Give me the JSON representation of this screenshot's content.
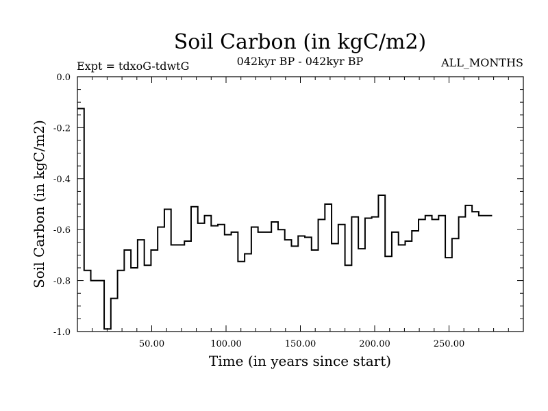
{
  "chart_data": {
    "type": "line",
    "step": true,
    "title": "Soil Carbon (in kgC/m2)",
    "subtitle_left": "Expt = tdxoG-tdwtG",
    "subtitle_center": "042kyr BP - 042kyr BP",
    "subtitle_right": "ALL_MONTHS",
    "xlabel": "Time (in years since start)",
    "ylabel": "Soil Carbon (in kgC/m2)",
    "xlim": [
      0,
      300
    ],
    "ylim": [
      -1.0,
      0.0
    ],
    "xticks": [
      50,
      100,
      150,
      200,
      250
    ],
    "xtick_labels": [
      "50.00",
      "100.00",
      "150.00",
      "200.00",
      "250.00"
    ],
    "yticks": [
      0.0,
      -0.2,
      -0.4,
      -0.6,
      -0.8,
      -1.0
    ],
    "ytick_labels": [
      "0.0",
      "-0.2",
      "-0.4",
      "-0.6",
      "-0.8",
      "-1.0"
    ],
    "grid": false,
    "series": [
      {
        "x_start": 0,
        "step_width": 4.5,
        "values": [
          -0.125,
          -0.76,
          -0.8,
          -0.8,
          -0.99,
          -0.87,
          -0.76,
          -0.68,
          -0.75,
          -0.64,
          -0.74,
          -0.68,
          -0.59,
          -0.52,
          -0.66,
          -0.66,
          -0.645,
          -0.51,
          -0.575,
          -0.545,
          -0.585,
          -0.58,
          -0.62,
          -0.61,
          -0.725,
          -0.695,
          -0.59,
          -0.61,
          -0.61,
          -0.57,
          -0.6,
          -0.64,
          -0.665,
          -0.625,
          -0.63,
          -0.68,
          -0.56,
          -0.5,
          -0.655,
          -0.58,
          -0.74,
          -0.55,
          -0.675,
          -0.555,
          -0.55,
          -0.465,
          -0.705,
          -0.61,
          -0.66,
          -0.645,
          -0.605,
          -0.56,
          -0.545,
          -0.56,
          -0.545,
          -0.71,
          -0.635,
          -0.55,
          -0.505,
          -0.53,
          -0.545,
          -0.545
        ]
      }
    ]
  }
}
